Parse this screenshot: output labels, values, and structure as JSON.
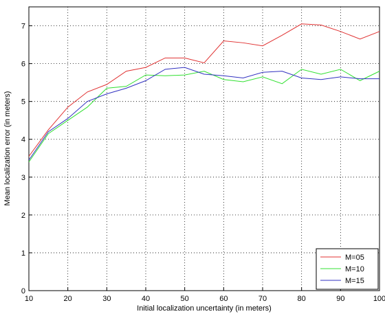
{
  "chart_data": {
    "type": "line",
    "xlabel": "Initial localization uncertainty (in meters)",
    "ylabel": "Mean localization error (in meters)",
    "x": [
      10,
      15,
      20,
      25,
      30,
      35,
      40,
      45,
      50,
      55,
      60,
      65,
      70,
      75,
      80,
      85,
      90,
      95,
      100
    ],
    "series": [
      {
        "name": "M=05",
        "color": "#e03030",
        "values": [
          3.55,
          4.25,
          4.85,
          5.25,
          5.45,
          5.8,
          5.9,
          6.15,
          6.15,
          6.02,
          6.6,
          6.55,
          6.47,
          6.75,
          7.05,
          7.02,
          6.85,
          6.65,
          6.85
        ]
      },
      {
        "name": "M=10",
        "color": "#30e030",
        "values": [
          3.4,
          4.15,
          4.5,
          4.85,
          5.35,
          5.4,
          5.7,
          5.68,
          5.7,
          5.8,
          5.58,
          5.52,
          5.65,
          5.47,
          5.85,
          5.72,
          5.85,
          5.55,
          5.8
        ]
      },
      {
        "name": "M=15",
        "color": "#3030c0",
        "values": [
          3.45,
          4.2,
          4.55,
          5.0,
          5.2,
          5.35,
          5.55,
          5.85,
          5.9,
          5.72,
          5.68,
          5.62,
          5.77,
          5.8,
          5.62,
          5.58,
          5.65,
          5.6,
          5.6
        ]
      }
    ],
    "xlim": [
      10,
      100
    ],
    "xticks": [
      10,
      20,
      30,
      40,
      50,
      60,
      70,
      80,
      90,
      100
    ],
    "ylim": [
      0,
      7.5
    ],
    "yticks": [
      0,
      1,
      2,
      3,
      4,
      5,
      6,
      7
    ],
    "grid": true,
    "legend": "lower right"
  }
}
